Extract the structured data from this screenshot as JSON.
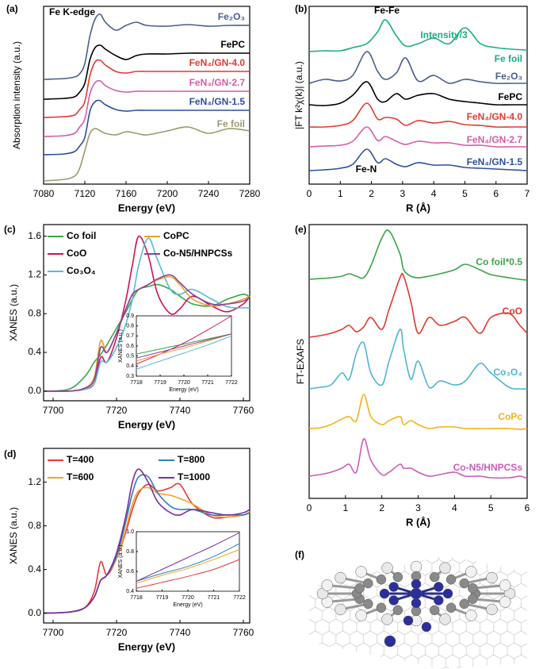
{
  "chart_data": [
    {
      "type": "line",
      "panel_label": "(a)",
      "annotation": "Fe K-edge",
      "xlabel": "Energy (eV)",
      "ylabel": "Absorption intensity (a.u.)",
      "x": [
        7080,
        7100,
        7110,
        7115,
        7120,
        7125,
        7130,
        7135,
        7140,
        7150,
        7160,
        7170,
        7180,
        7200,
        7220,
        7240,
        7260,
        7280
      ],
      "xlim": [
        7080,
        7280
      ],
      "xticks": [
        7080,
        7120,
        7160,
        7200,
        7240,
        7280
      ],
      "ylim": [
        0,
        22.4
      ],
      "series": [
        {
          "name": "Fe₂O₃",
          "color": "#4a5e8a",
          "values": [
            13.2,
            13.3,
            13.5,
            13.9,
            15.2,
            18.7,
            20.8,
            21.4,
            20.4,
            19.4,
            20.0,
            20.4,
            20.0,
            19.9,
            20.1,
            19.9,
            20.0,
            20.0
          ]
        },
        {
          "name": "FePC",
          "color": "#000000",
          "values": [
            10.7,
            10.8,
            11.0,
            11.6,
            12.7,
            15.7,
            17.2,
            17.5,
            17.0,
            16.2,
            15.7,
            16.2,
            16.4,
            16.4,
            16.5,
            16.5,
            16.5,
            16.5
          ]
        },
        {
          "name": "FeN₄/GN-4.0",
          "color": "#e03a2f",
          "values": [
            8.4,
            8.5,
            8.7,
            9.4,
            10.4,
            13.7,
            15.4,
            15.6,
            15.0,
            14.2,
            14.0,
            14.2,
            14.2,
            14.2,
            14.2,
            14.2,
            14.2,
            14.2
          ]
        },
        {
          "name": "FeN₄/GN-2.7",
          "color": "#d55ba8",
          "values": [
            6.0,
            6.1,
            6.4,
            7.2,
            8.2,
            11.4,
            12.8,
            13.0,
            12.4,
            11.8,
            11.6,
            11.7,
            11.7,
            11.7,
            11.7,
            11.7,
            11.7,
            11.7
          ]
        },
        {
          "name": "FeN₄/GN-1.5",
          "color": "#2e4f9e",
          "values": [
            3.7,
            3.8,
            4.1,
            4.8,
            5.9,
            9.2,
            10.4,
            10.5,
            10.0,
            9.4,
            9.2,
            9.3,
            9.3,
            9.3,
            9.3,
            9.3,
            9.3,
            9.3
          ]
        },
        {
          "name": "Fe foil",
          "color": "#9a9a6e",
          "values": [
            0.4,
            0.6,
            1.0,
            2.0,
            4.2,
            6.4,
            7.0,
            6.7,
            6.4,
            6.2,
            6.6,
            6.4,
            6.2,
            6.7,
            7.2,
            6.4,
            7.0,
            6.7
          ]
        }
      ]
    },
    {
      "type": "line",
      "panel_label": "(b)",
      "annotations": [
        "Fe-Fe",
        "Intensity/3",
        "Fe-N"
      ],
      "xlabel": "R (Å)",
      "ylabel": "|FT k²χ(k)| (a.u.)",
      "x": [
        0,
        0.5,
        1,
        1.4,
        1.85,
        2.2,
        2.45,
        2.8,
        3.1,
        3.5,
        4,
        4.5,
        5,
        5.5,
        6,
        6.5,
        7
      ],
      "xlim": [
        0,
        7
      ],
      "xticks": [
        0,
        1,
        2,
        3,
        4,
        5,
        6,
        7
      ],
      "ylim": [
        0,
        22.4
      ],
      "series": [
        {
          "name": "Fe foil",
          "color": "#1aae84",
          "values": [
            16.7,
            16.8,
            16.8,
            17.2,
            17.7,
            19.2,
            20.7,
            18.7,
            17.4,
            17.7,
            18.4,
            17.7,
            19.7,
            17.7,
            17.2,
            17.0,
            16.9
          ]
        },
        {
          "name": "Fe₂O₃",
          "color": "#4a5e8a",
          "values": [
            12.7,
            13.2,
            13.0,
            13.7,
            16.7,
            14.2,
            13.2,
            14.0,
            15.9,
            13.0,
            13.7,
            12.7,
            13.2,
            12.9,
            12.7,
            12.7,
            12.7
          ]
        },
        {
          "name": "FePC",
          "color": "#000000",
          "values": [
            10.0,
            9.9,
            10.2,
            11.2,
            12.9,
            10.7,
            10.4,
            11.4,
            10.7,
            11.2,
            11.4,
            10.7,
            10.4,
            10.2,
            10.0,
            10.0,
            10.0
          ]
        },
        {
          "name": "FeN₄/GN-4.0",
          "color": "#e03a2f",
          "values": [
            7.2,
            7.2,
            7.4,
            8.0,
            10.2,
            8.2,
            8.4,
            8.2,
            7.4,
            8.0,
            7.7,
            7.9,
            7.5,
            7.4,
            7.2,
            7.2,
            7.2
          ]
        },
        {
          "name": "FeN₄/GN-2.7",
          "color": "#d55ba8",
          "values": [
            4.7,
            4.8,
            4.9,
            5.4,
            7.2,
            5.5,
            6.0,
            5.4,
            5.0,
            5.4,
            5.2,
            5.2,
            4.9,
            4.9,
            4.7,
            4.7,
            4.7
          ]
        },
        {
          "name": "FeN₄/GN-1.5",
          "color": "#2e4f9e",
          "values": [
            1.7,
            1.8,
            2.0,
            2.5,
            4.4,
            2.7,
            3.2,
            2.5,
            2.2,
            2.7,
            2.4,
            2.4,
            2.1,
            2.0,
            1.9,
            1.8,
            1.7
          ]
        }
      ]
    },
    {
      "type": "line",
      "panel_label": "(c)",
      "xlabel": "Energy (eV)",
      "ylabel": "XANES (a.u.)",
      "x": [
        7697,
        7705,
        7710,
        7713,
        7715,
        7717,
        7720,
        7723,
        7725,
        7727,
        7730,
        7733,
        7737,
        7740,
        7744,
        7750,
        7755,
        7760,
        7762
      ],
      "xlim": [
        7697,
        7762
      ],
      "xticks": [
        7700,
        7720,
        7740,
        7760
      ],
      "ylim": [
        -0.1,
        1.72
      ],
      "yticks": [
        {
          "value": 0,
          "label": "0.0"
        },
        0.4,
        0.8,
        1.2,
        1.6
      ],
      "series": [
        {
          "name": "Co foil",
          "color": "#3aa548",
          "values": [
            0.0,
            0.02,
            0.15,
            0.3,
            0.38,
            0.48,
            0.65,
            0.82,
            0.95,
            1.05,
            1.08,
            1.1,
            1.05,
            0.98,
            0.9,
            0.88,
            0.95,
            1.0,
            0.97
          ]
        },
        {
          "name": "CoO",
          "color": "#d0105a",
          "values": [
            0.0,
            0.0,
            0.02,
            0.08,
            0.35,
            0.3,
            0.55,
            0.95,
            1.3,
            1.6,
            1.4,
            1.0,
            0.8,
            0.85,
            0.98,
            0.88,
            0.82,
            0.9,
            0.98
          ]
        },
        {
          "name": "Co₃O₄",
          "color": "#55bcd8",
          "values": [
            0.0,
            0.0,
            0.02,
            0.08,
            0.3,
            0.3,
            0.45,
            0.7,
            0.95,
            1.3,
            1.58,
            1.35,
            1.05,
            1.0,
            1.05,
            0.95,
            0.87,
            0.86,
            0.86
          ]
        },
        {
          "name": "CoPC",
          "color": "#f0a020",
          "values": [
            0.0,
            0.0,
            0.03,
            0.15,
            0.52,
            0.4,
            0.6,
            0.85,
            1.0,
            1.05,
            1.1,
            1.15,
            1.18,
            1.1,
            0.95,
            0.88,
            0.9,
            0.95,
            0.98
          ]
        },
        {
          "name": "Co-N5/HNPCSs",
          "color": "#8a3fa0",
          "values": [
            0.0,
            0.0,
            0.03,
            0.12,
            0.45,
            0.4,
            0.6,
            0.85,
            1.0,
            1.05,
            1.1,
            1.16,
            1.2,
            1.12,
            1.0,
            0.9,
            0.9,
            0.93,
            0.97
          ]
        }
      ]
    },
    {
      "type": "line",
      "xlabel": "Energy (eV)",
      "ylabel": "XANES (a.u.)",
      "x": [
        7718,
        7719,
        7720,
        7721,
        7722
      ],
      "xlim": [
        7718,
        7722
      ],
      "xticks": [
        7718,
        7719,
        7720,
        7721,
        7722
      ],
      "ylim": [
        0.3,
        0.9
      ],
      "yticks": [
        0.3,
        0.4,
        0.5,
        0.6,
        0.7,
        0.8,
        0.9
      ],
      "series": [
        {
          "color": "#3aa548",
          "values": [
            0.52,
            0.57,
            0.62,
            0.67,
            0.72
          ]
        },
        {
          "color": "#d0105a",
          "values": [
            0.42,
            0.52,
            0.63,
            0.76,
            0.9
          ]
        },
        {
          "color": "#55bcd8",
          "values": [
            0.37,
            0.45,
            0.53,
            0.61,
            0.7
          ]
        },
        {
          "color": "#f0a020",
          "values": [
            0.45,
            0.52,
            0.58,
            0.65,
            0.72
          ]
        },
        {
          "color": "#8a3fa0",
          "values": [
            0.48,
            0.54,
            0.6,
            0.66,
            0.72
          ]
        }
      ]
    },
    {
      "type": "line",
      "panel_label": "(d)",
      "xlabel": "Energy (eV)",
      "ylabel": "XANES (a.u.)",
      "x": [
        7697,
        7705,
        7710,
        7713,
        7715,
        7717,
        7720,
        7723,
        7725,
        7727,
        7730,
        7733,
        7737,
        7740,
        7744,
        7750,
        7755,
        7760,
        7762
      ],
      "xlim": [
        7697,
        7762
      ],
      "xticks": [
        7700,
        7720,
        7740,
        7760
      ],
      "ylim": [
        -0.09,
        1.51
      ],
      "yticks": [
        {
          "value": 0,
          "label": "0.0"
        },
        0.4,
        0.8,
        1.2
      ],
      "series": [
        {
          "name": "T=400",
          "color": "#e8363a",
          "values": [
            0,
            0.01,
            0.05,
            0.2,
            0.47,
            0.35,
            0.5,
            0.75,
            0.95,
            1.1,
            1.18,
            1.12,
            1.15,
            1.18,
            1.0,
            0.88,
            0.88,
            0.9,
            0.93
          ]
        },
        {
          "name": "T=600",
          "color": "#f5a623",
          "values": [
            0,
            0.01,
            0.05,
            0.15,
            0.3,
            0.35,
            0.5,
            0.78,
            1.0,
            1.12,
            1.15,
            1.1,
            1.08,
            1.05,
            1.0,
            0.9,
            0.88,
            0.9,
            0.93
          ]
        },
        {
          "name": "T=800",
          "color": "#2c7fc1",
          "values": [
            0,
            0.01,
            0.05,
            0.15,
            0.3,
            0.35,
            0.52,
            0.85,
            1.1,
            1.25,
            1.25,
            1.1,
            0.98,
            0.95,
            0.95,
            0.9,
            0.9,
            0.9,
            0.92
          ]
        },
        {
          "name": "T=1000",
          "color": "#7b2f9e",
          "values": [
            0,
            0.01,
            0.05,
            0.15,
            0.3,
            0.35,
            0.55,
            0.9,
            1.2,
            1.32,
            1.2,
            1.02,
            0.92,
            0.9,
            0.95,
            0.92,
            0.9,
            0.92,
            0.95
          ]
        }
      ]
    },
    {
      "type": "line",
      "xlabel": "Energy (eV)",
      "ylabel": "XANES (a.u.)",
      "x": [
        7718,
        7719,
        7720,
        7721,
        7722
      ],
      "xlim": [
        7718,
        7722
      ],
      "xticks": [
        7718,
        7719,
        7720,
        7721,
        7722
      ],
      "ylim": [
        0.4,
        1.0
      ],
      "yticks": [
        0.4,
        0.6,
        0.8,
        {
          "value": 1,
          "label": "1.0"
        }
      ],
      "series": [
        {
          "color": "#e8363a",
          "values": [
            0.43,
            0.49,
            0.55,
            0.62,
            0.72
          ]
        },
        {
          "color": "#f5a623",
          "values": [
            0.48,
            0.56,
            0.63,
            0.72,
            0.82
          ]
        },
        {
          "color": "#2c7fc1",
          "values": [
            0.5,
            0.58,
            0.65,
            0.75,
            0.88
          ]
        },
        {
          "color": "#7b2f9e",
          "values": [
            0.5,
            0.62,
            0.74,
            0.86,
            0.99
          ]
        }
      ]
    },
    {
      "type": "line",
      "panel_label": "(e)",
      "xlabel": "R (Å)",
      "ylabel": "FT-EXAFS",
      "x": [
        0,
        0.3,
        0.6,
        0.9,
        1.1,
        1.3,
        1.5,
        1.7,
        2.0,
        2.2,
        2.5,
        2.6,
        2.8,
        3.0,
        3.3,
        3.6,
        4.0,
        4.3,
        4.7,
        5.0,
        5.5,
        5.8,
        6
      ],
      "xlim": [
        0,
        6
      ],
      "xticks": [
        0,
        1,
        2,
        3,
        4,
        5,
        6
      ],
      "ylim": [
        0,
        34.5
      ],
      "series": [
        {
          "name": "Co foil*0.5",
          "color": "#3aa548",
          "values": [
            27.6,
            27.7,
            27.8,
            28.0,
            28.3,
            28.0,
            27.8,
            29.3,
            32.8,
            33.7,
            30.8,
            28.8,
            28.0,
            27.8,
            28.0,
            28.3,
            28.8,
            29.5,
            28.8,
            28.2,
            27.8,
            27.6,
            27.5
          ]
        },
        {
          "name": "CoO",
          "color": "#e3382e",
          "values": [
            20.3,
            20.5,
            20.8,
            21.3,
            21.8,
            21.0,
            21.6,
            22.8,
            21.3,
            23.8,
            27.8,
            28.0,
            24.8,
            20.8,
            22.8,
            21.8,
            22.3,
            22.8,
            20.8,
            22.8,
            23.3,
            21.8,
            20.8
          ]
        },
        {
          "name": "Co₃O₄",
          "color": "#4fb5cf",
          "values": [
            13.8,
            14.0,
            14.3,
            15.8,
            15.0,
            18.3,
            19.6,
            15.8,
            14.3,
            17.3,
            21.3,
            18.8,
            15.0,
            17.3,
            14.0,
            14.8,
            14.3,
            14.8,
            17.0,
            15.8,
            14.0,
            13.8,
            13.8
          ]
        },
        {
          "name": "CoPc",
          "color": "#f2b21b",
          "values": [
            8.8,
            8.9,
            9.3,
            10.0,
            10.3,
            9.8,
            13.1,
            10.3,
            9.3,
            9.8,
            10.3,
            9.3,
            9.8,
            9.3,
            8.8,
            9.0,
            9.0,
            8.8,
            8.8,
            8.8,
            8.8,
            8.7,
            8.8
          ]
        },
        {
          "name": "Co-N5/HNPCSs",
          "color": "#cc5cb8",
          "values": [
            2.8,
            3.0,
            3.3,
            3.8,
            4.3,
            3.3,
            7.5,
            4.8,
            3.0,
            3.3,
            4.3,
            3.8,
            3.8,
            3.3,
            2.8,
            3.0,
            3.3,
            2.8,
            2.8,
            2.6,
            2.6,
            2.8,
            2.5
          ]
        }
      ]
    }
  ],
  "image": {
    "panel_label": "(f)"
  }
}
